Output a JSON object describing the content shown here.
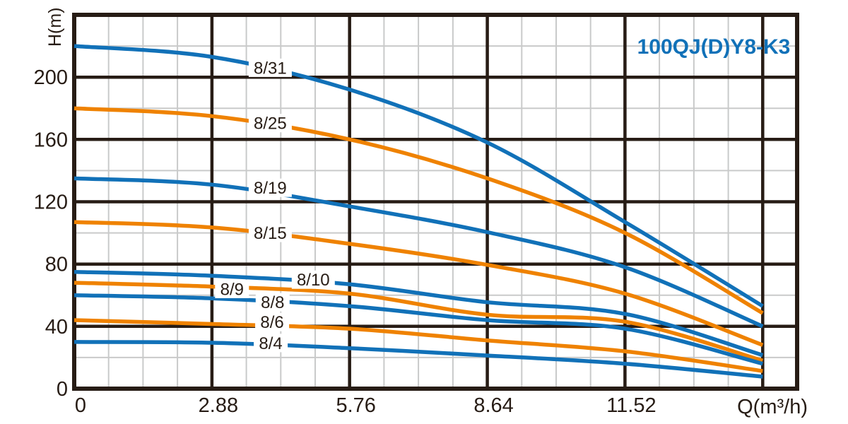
{
  "title": {
    "text": "100QJ(D)Y8-K3"
  },
  "axes": {
    "y_label": "H(m)",
    "x_label": "Q(m³/h)",
    "x_tick_labels": [
      "0",
      "2.88",
      "5.76",
      "8.64",
      "11.52"
    ],
    "y_tick_labels": [
      "0",
      "40",
      "80",
      "120",
      "160",
      "200"
    ]
  },
  "colors": {
    "ink": "#271c15",
    "minor_grid": "#c9caca",
    "blue": "#1171b8",
    "orange": "#ef8200",
    "label_box": "#ffffff",
    "title_blue": "#1171b8"
  },
  "chart_data": {
    "type": "line",
    "title": "100QJ(D)Y8-K3",
    "xlabel": "Q(m³/h)",
    "ylabel": "H(m)",
    "xlim": [
      0,
      15.12
    ],
    "ylim": [
      0,
      240
    ],
    "grid": true,
    "x_major_ticks": [
      0,
      2.88,
      5.76,
      8.64,
      11.52
    ],
    "x_minor_step": 0.72,
    "y_major_ticks": [
      0,
      40,
      80,
      120,
      160,
      200
    ],
    "y_minor_step": 20,
    "x": [
      0,
      2.88,
      5.76,
      8.64,
      11.52,
      14.4
    ],
    "series": [
      {
        "name": "8/31",
        "color": "blue",
        "values": [
          220,
          213,
          192,
          158,
          107,
          53
        ],
        "label_at": [
          4.1,
          206
        ]
      },
      {
        "name": "8/25",
        "color": "orange",
        "values": [
          180,
          175,
          160,
          135,
          100,
          48.5
        ],
        "label_at": [
          4.1,
          170.5
        ]
      },
      {
        "name": "8/19",
        "color": "blue",
        "values": [
          135,
          131,
          117,
          100.5,
          78,
          40
        ],
        "label_at": [
          4.1,
          129
        ]
      },
      {
        "name": "8/15",
        "color": "orange",
        "values": [
          107,
          103.5,
          93,
          79.5,
          61,
          28
        ],
        "label_at": [
          4.1,
          100
        ]
      },
      {
        "name": "8/10",
        "color": "blue",
        "values": [
          75,
          72.5,
          67,
          55.5,
          48,
          21.5
        ],
        "label_at": [
          5.0,
          70
        ]
      },
      {
        "name": "8/9",
        "color": "orange",
        "values": [
          68,
          65.5,
          61,
          47.5,
          43,
          18
        ],
        "label_at": [
          3.3,
          64
        ]
      },
      {
        "name": "8/8",
        "color": "blue",
        "values": [
          60,
          58,
          53,
          44,
          38.5,
          16
        ],
        "label_at": [
          4.15,
          55.5
        ]
      },
      {
        "name": "8/6",
        "color": "orange",
        "values": [
          44,
          41.5,
          38.5,
          31,
          24,
          11.3
        ],
        "label_at": [
          4.14,
          42.8
        ]
      },
      {
        "name": "8/4",
        "color": "blue",
        "values": [
          30,
          29.5,
          26,
          21.3,
          16,
          7.7
        ],
        "label_at": [
          4.11,
          29.3
        ]
      }
    ]
  }
}
